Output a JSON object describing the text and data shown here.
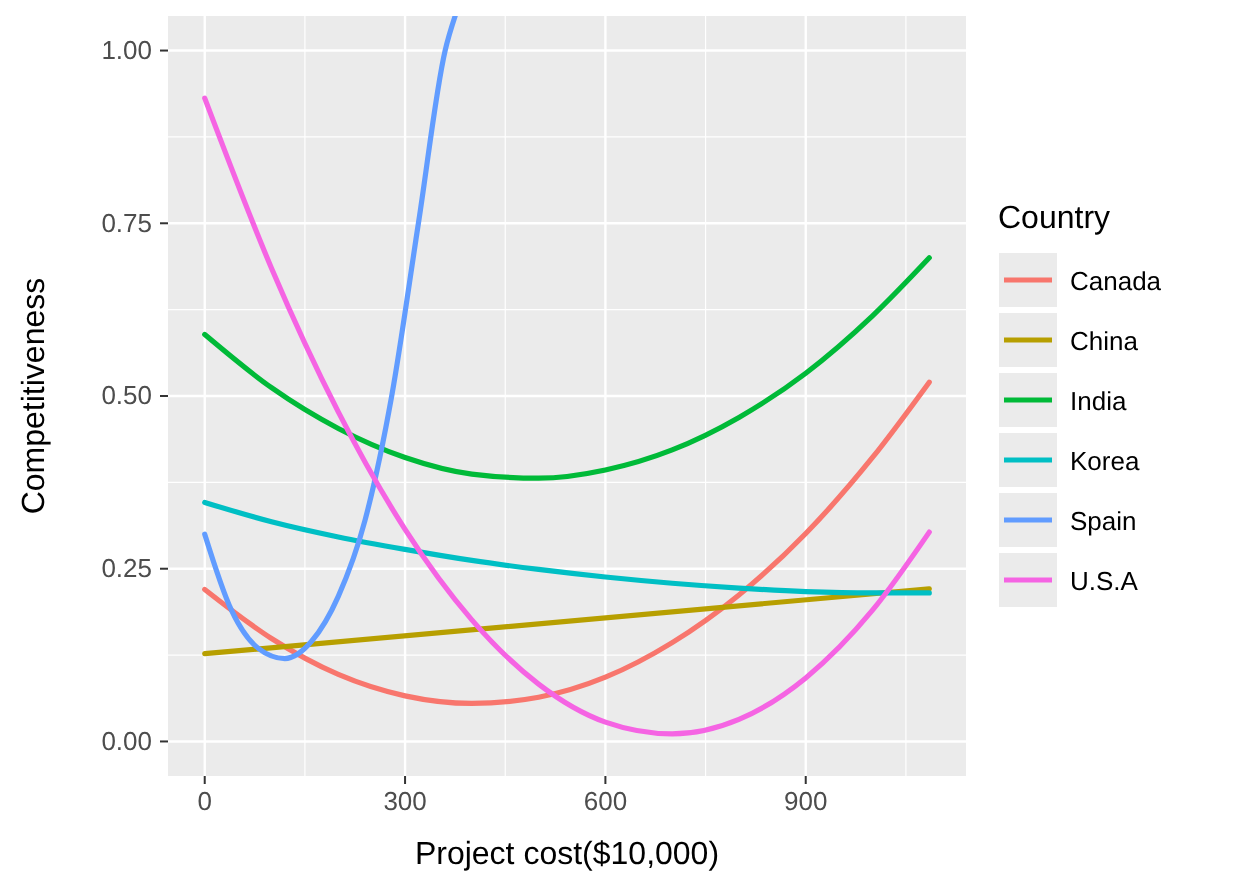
{
  "chart_data": {
    "type": "line",
    "xlabel": "Project cost($10,000)",
    "ylabel": "Competitiveness",
    "legend_title": "Country",
    "legend": "right",
    "grid": true,
    "line_style": "solid",
    "marker": "none",
    "xlim": [
      -55,
      1140
    ],
    "ylim": [
      -0.05,
      1.05
    ],
    "xticks": [
      0,
      300,
      600,
      900
    ],
    "yticks": [
      {
        "value": 0,
        "label": "0.00"
      },
      {
        "value": 0.25,
        "label": "0.25"
      },
      {
        "value": 0.5,
        "label": "0.50"
      },
      {
        "value": 0.75,
        "label": "0.75"
      },
      {
        "value": 1,
        "label": "1.00"
      }
    ],
    "series": [
      {
        "name": "Canada",
        "color": "#f8766d",
        "x": [
          0,
          100,
          200,
          300,
          400,
          500,
          600,
          700,
          800,
          900,
          1000,
          1085
        ],
        "values": [
          0.22,
          0.149,
          0.097,
          0.066,
          0.055,
          0.064,
          0.093,
          0.143,
          0.212,
          0.301,
          0.411,
          0.52
        ]
      },
      {
        "name": "China",
        "color": "#b79f00",
        "x": [
          0,
          1085
        ],
        "values": [
          0.127,
          0.221
        ]
      },
      {
        "name": "India",
        "color": "#00ba38",
        "x": [
          0,
          100,
          200,
          300,
          400,
          500,
          600,
          700,
          800,
          900,
          1000,
          1085
        ],
        "values": [
          0.589,
          0.512,
          0.453,
          0.411,
          0.387,
          0.381,
          0.393,
          0.422,
          0.469,
          0.533,
          0.616,
          0.7
        ]
      },
      {
        "name": "Korea",
        "color": "#00bfc4",
        "x": [
          0,
          100,
          200,
          300,
          400,
          500,
          600,
          700,
          800,
          900,
          1000,
          1085
        ],
        "values": [
          0.346,
          0.318,
          0.296,
          0.278,
          0.262,
          0.249,
          0.238,
          0.229,
          0.222,
          0.217,
          0.215,
          0.215
        ]
      },
      {
        "name": "Spain",
        "color": "#619cff",
        "x": [
          0,
          40,
          80,
          120,
          160,
          200,
          240,
          280,
          320,
          360,
          375
        ],
        "values": [
          0.3,
          0.19,
          0.135,
          0.12,
          0.145,
          0.21,
          0.32,
          0.5,
          0.75,
          1.0,
          1.05
        ]
      },
      {
        "name": "U.S.A",
        "color": "#f564e3",
        "x": [
          0,
          100,
          200,
          300,
          400,
          500,
          600,
          700,
          800,
          900,
          1000,
          1085
        ],
        "values": [
          0.931,
          0.685,
          0.477,
          0.307,
          0.176,
          0.083,
          0.028,
          0.011,
          0.032,
          0.092,
          0.19,
          0.303
        ]
      }
    ]
  }
}
